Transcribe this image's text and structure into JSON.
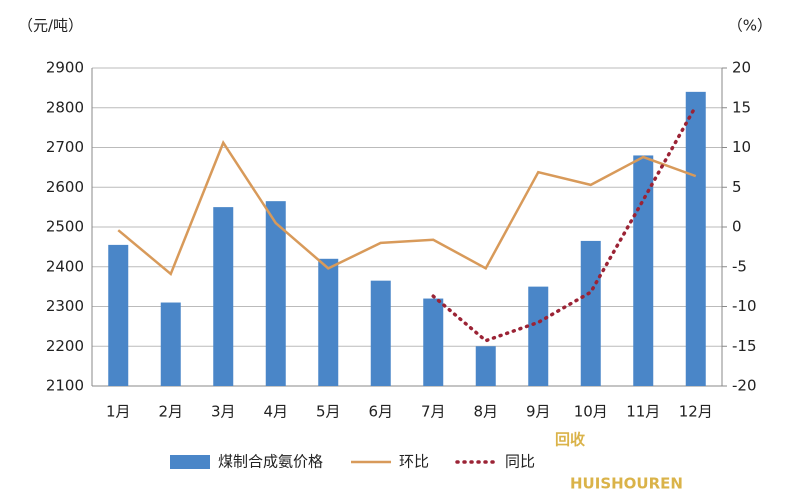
{
  "chart_data": {
    "type": "bar-line",
    "y_unit": "（元/吨）",
    "y2_unit": "（%）",
    "categories": [
      "1月",
      "2月",
      "3月",
      "4月",
      "5月",
      "6月",
      "7月",
      "8月",
      "9月",
      "10月",
      "11月",
      "12月"
    ],
    "series": [
      {
        "name": "煤制合成氨价格",
        "color": "#4a86c8",
        "kind": "bar",
        "values": [
          2455,
          2310,
          2550,
          2565,
          2420,
          2365,
          2320,
          2200,
          2350,
          2465,
          2680,
          2840
        ]
      },
      {
        "name": "环比",
        "color": "#d89a5a",
        "kind": "line",
        "axis": "y2",
        "values": [
          -0.4,
          -5.9,
          10.6,
          0.5,
          -5.2,
          -2.0,
          -1.6,
          -5.2,
          6.9,
          5.3,
          8.8,
          6.4
        ]
      },
      {
        "name": "同比",
        "color": "#9b2335",
        "kind": "dotted",
        "axis": "y2",
        "values": [
          null,
          null,
          null,
          null,
          null,
          null,
          -8.7,
          -14.3,
          -12.0,
          -8.2,
          3.4,
          15.2
        ]
      }
    ],
    "ylim": [
      2100,
      2900
    ],
    "yticks": [
      2100,
      2200,
      2300,
      2400,
      2500,
      2600,
      2700,
      2800,
      2900
    ],
    "y2lim": [
      -20,
      20
    ],
    "y2ticks": [
      -20,
      -15,
      -10,
      -5,
      0,
      5,
      10,
      15,
      20
    ],
    "grid": true,
    "legend": "bottom",
    "watermark": {
      "text": "回收",
      "subtext": "HUISHOUREN"
    }
  }
}
